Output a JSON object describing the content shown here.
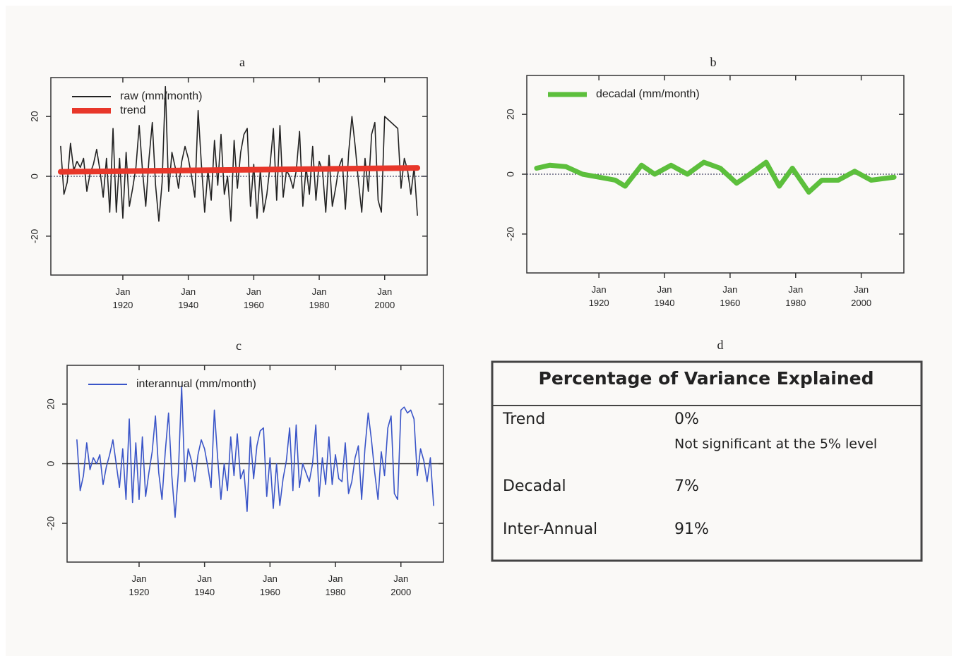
{
  "chart_data": [
    {
      "type": "line",
      "title": "a",
      "xlim": [
        1898,
        2013
      ],
      "ylim": [
        -33,
        33
      ],
      "xticks": [
        {
          "value": 1920,
          "label": "Jan 1920"
        },
        {
          "value": 1940,
          "label": "Jan 1940"
        },
        {
          "value": 1960,
          "label": "Jan 1960"
        },
        {
          "value": 1980,
          "label": "Jan 1980"
        },
        {
          "value": 2000,
          "label": "Jan 2000"
        }
      ],
      "yticks": [
        -20,
        0,
        20
      ],
      "hline": {
        "value": 0,
        "style": "dotted"
      },
      "legend": "top-left",
      "series": [
        {
          "name": "raw (mm/month)",
          "color": "#222222",
          "x": [
            1901,
            1902,
            1903,
            1904,
            1905,
            1906,
            1907,
            1908,
            1909,
            1910,
            1911,
            1912,
            1913,
            1914,
            1915,
            1916,
            1917,
            1918,
            1919,
            1920,
            1921,
            1922,
            1923,
            1924,
            1925,
            1926,
            1927,
            1928,
            1929,
            1930,
            1931,
            1932,
            1933,
            1934,
            1935,
            1936,
            1937,
            1938,
            1939,
            1940,
            1941,
            1942,
            1943,
            1944,
            1945,
            1946,
            1947,
            1948,
            1949,
            1950,
            1951,
            1952,
            1953,
            1954,
            1955,
            1956,
            1957,
            1958,
            1959,
            1960,
            1961,
            1962,
            1963,
            1964,
            1965,
            1966,
            1967,
            1968,
            1969,
            1970,
            1971,
            1972,
            1973,
            1974,
            1975,
            1976,
            1977,
            1978,
            1979,
            1980,
            1981,
            1982,
            1983,
            1984,
            1985,
            1986,
            1987,
            1988,
            1989,
            1990,
            1991,
            1992,
            1993,
            1994,
            1995,
            1996,
            1997,
            1998,
            1999,
            2000,
            2001,
            2002,
            2003,
            2004,
            2005,
            2006,
            2007,
            2008,
            2009,
            2010
          ],
          "values": [
            10,
            -6,
            -2,
            11,
            2,
            5,
            3,
            6,
            -5,
            1,
            4,
            9,
            2,
            -7,
            6,
            -12,
            16,
            -12,
            6,
            -14,
            8,
            -10,
            -4,
            3,
            17,
            2,
            -10,
            6,
            18,
            -3,
            -15,
            -2,
            30,
            -5,
            8,
            3,
            -4,
            5,
            10,
            6,
            0,
            -7,
            22,
            4,
            -12,
            2,
            -8,
            12,
            -3,
            14,
            -6,
            0,
            -15,
            12,
            -4,
            8,
            14,
            16,
            -10,
            4,
            -14,
            2,
            -12,
            -6,
            4,
            16,
            -8,
            17,
            -7,
            2,
            0,
            -4,
            2,
            15,
            -10,
            3,
            -6,
            10,
            -8,
            5,
            2,
            -12,
            7,
            -10,
            -4,
            3,
            6,
            -11,
            8,
            20,
            10,
            -2,
            -12,
            6,
            -5,
            14,
            18,
            -8,
            -12,
            20,
            19,
            18,
            17,
            16,
            -4,
            6,
            2,
            -6,
            3,
            -13
          ]
        },
        {
          "name": "trend",
          "color": "#e8372a",
          "x": [
            1901,
            2010
          ],
          "values": [
            1.5,
            2.8
          ]
        }
      ]
    },
    {
      "type": "line",
      "title": "b",
      "xlim": [
        1898,
        2013
      ],
      "ylim": [
        -33,
        33
      ],
      "xticks": [
        {
          "value": 1920,
          "label": "Jan 1920"
        },
        {
          "value": 1940,
          "label": "Jan 1940"
        },
        {
          "value": 1960,
          "label": "Jan 1960"
        },
        {
          "value": 1980,
          "label": "Jan 1980"
        },
        {
          "value": 2000,
          "label": "Jan 2000"
        }
      ],
      "yticks": [
        -20,
        0,
        20
      ],
      "hline": {
        "value": 0,
        "style": "dotted"
      },
      "legend": "top-left",
      "series": [
        {
          "name": "decadal (mm/month)",
          "color": "#5cbf3c",
          "x": [
            1901,
            1905,
            1910,
            1915,
            1920,
            1925,
            1928,
            1933,
            1937,
            1942,
            1947,
            1952,
            1957,
            1962,
            1966,
            1971,
            1975,
            1979,
            1984,
            1988,
            1993,
            1998,
            2003,
            2010
          ],
          "values": [
            2,
            3,
            2.5,
            0,
            -1,
            -2,
            -4,
            3,
            0,
            3,
            0,
            4,
            2,
            -3,
            0,
            4,
            -4,
            2,
            -6,
            -2,
            -2,
            1,
            -2,
            -1
          ]
        }
      ]
    },
    {
      "type": "line",
      "title": "c",
      "xlim": [
        1898,
        2013
      ],
      "ylim": [
        -33,
        33
      ],
      "xticks": [
        {
          "value": 1920,
          "label": "Jan 1920"
        },
        {
          "value": 1940,
          "label": "Jan 1940"
        },
        {
          "value": 1960,
          "label": "Jan 1960"
        },
        {
          "value": 1980,
          "label": "Jan 1980"
        },
        {
          "value": 2000,
          "label": "Jan 2000"
        }
      ],
      "yticks": [
        -20,
        0,
        20
      ],
      "hline": {
        "value": 0,
        "style": "solid"
      },
      "legend": "top-left",
      "series": [
        {
          "name": "interannual (mm/month)",
          "color": "#3a55c8",
          "x": [
            1901,
            1902,
            1903,
            1904,
            1905,
            1906,
            1907,
            1908,
            1909,
            1910,
            1911,
            1912,
            1913,
            1914,
            1915,
            1916,
            1917,
            1918,
            1919,
            1920,
            1921,
            1922,
            1923,
            1924,
            1925,
            1926,
            1927,
            1928,
            1929,
            1930,
            1931,
            1932,
            1933,
            1934,
            1935,
            1936,
            1937,
            1938,
            1939,
            1940,
            1941,
            1942,
            1943,
            1944,
            1945,
            1946,
            1947,
            1948,
            1949,
            1950,
            1951,
            1952,
            1953,
            1954,
            1955,
            1956,
            1957,
            1958,
            1959,
            1960,
            1961,
            1962,
            1963,
            1964,
            1965,
            1966,
            1967,
            1968,
            1969,
            1970,
            1971,
            1972,
            1973,
            1974,
            1975,
            1976,
            1977,
            1978,
            1979,
            1980,
            1981,
            1982,
            1983,
            1984,
            1985,
            1986,
            1987,
            1988,
            1989,
            1990,
            1991,
            1992,
            1993,
            1994,
            1995,
            1996,
            1997,
            1998,
            1999,
            2000,
            2001,
            2002,
            2003,
            2004,
            2005,
            2006,
            2007,
            2008,
            2009,
            2010
          ],
          "values": [
            8,
            -9,
            -4,
            7,
            -2,
            2,
            0,
            3,
            -7,
            -1,
            3,
            8,
            0,
            -8,
            5,
            -12,
            15,
            -13,
            7,
            -12,
            9,
            -11,
            -3,
            4,
            16,
            -3,
            -12,
            4,
            17,
            -4,
            -18,
            -3,
            26,
            -6,
            5,
            1,
            -6,
            3,
            8,
            5,
            -1,
            -8,
            18,
            2,
            -12,
            0,
            -9,
            9,
            -4,
            10,
            -5,
            -2,
            -16,
            9,
            -5,
            6,
            11,
            12,
            -11,
            2,
            -15,
            0,
            -14,
            -5,
            1,
            12,
            -9,
            13,
            -8,
            0,
            -3,
            -6,
            0,
            13,
            -11,
            2,
            -7,
            9,
            -7,
            3,
            -5,
            -6,
            7,
            -10,
            -6,
            2,
            6,
            -12,
            5,
            17,
            8,
            -3,
            -12,
            4,
            -4,
            12,
            16,
            -10,
            -12,
            18,
            19,
            17,
            18,
            15,
            -4,
            5,
            1,
            -6,
            2,
            -14
          ]
        }
      ]
    }
  ],
  "table": {
    "panel": "d",
    "title": "Percentage of Variance Explained",
    "rows": [
      [
        "Trend",
        "0%",
        "Not significant at the 5% level"
      ],
      [
        "Decadal",
        "7%"
      ],
      [
        "Inter-Annual",
        "91%"
      ]
    ]
  }
}
